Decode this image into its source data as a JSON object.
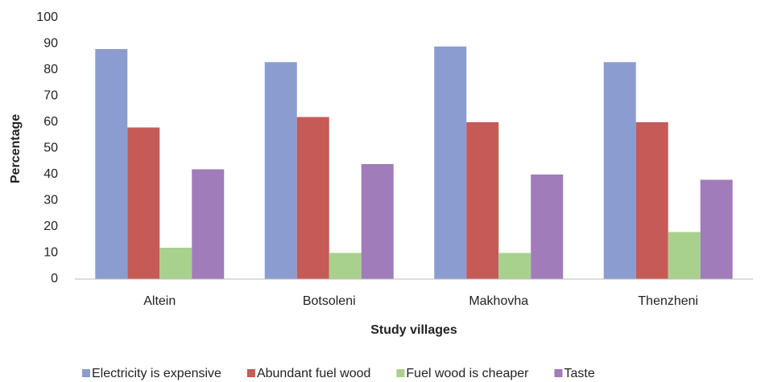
{
  "chart_data": {
    "type": "bar",
    "x_label": "Study villages",
    "y_label": "Percentage",
    "categories": [
      "Altein",
      "Botsoleni",
      "Makhovha",
      "Thenzheni"
    ],
    "series": [
      {
        "name": "Electricity is expensive",
        "color": "#8b9dd0",
        "values": [
          88,
          83,
          89,
          83
        ]
      },
      {
        "name": "Abundant fuel wood",
        "color": "#c55a57",
        "values": [
          58,
          62,
          60,
          60
        ]
      },
      {
        "name": "Fuel wood is cheaper",
        "color": "#a9d18e",
        "values": [
          12,
          10,
          10,
          18
        ]
      },
      {
        "name": "Taste",
        "color": "#a07cbb",
        "values": [
          42,
          44,
          40,
          38
        ]
      }
    ],
    "ylim": [
      0,
      100
    ],
    "yticks": [
      0,
      10,
      20,
      30,
      40,
      50,
      60,
      70,
      80,
      90,
      100
    ],
    "grid": false,
    "legend": "bottom"
  }
}
